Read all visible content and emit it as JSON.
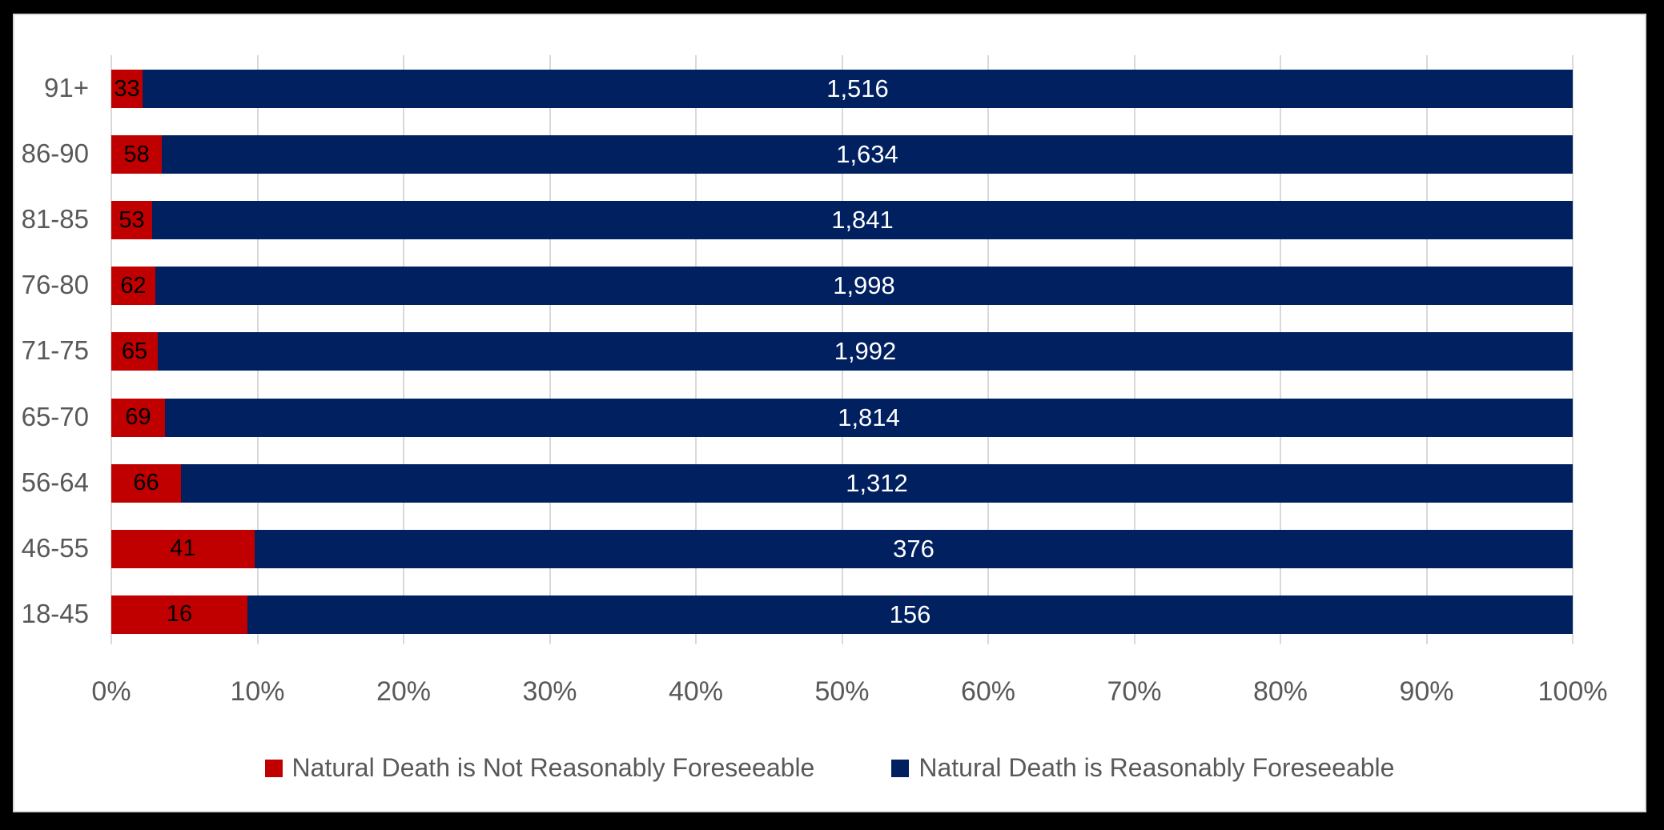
{
  "window": {
    "background_color": "#000000",
    "panel_background": "#ffffff",
    "panel_border_color": "#d9d9d9"
  },
  "chart_data": {
    "type": "bar",
    "orientation": "horizontal",
    "mode": "100-percent-stacked",
    "title": "",
    "xlabel": "",
    "ylabel": "",
    "xlim": [
      0,
      100
    ],
    "x_tick_labels": [
      "0%",
      "10%",
      "20%",
      "30%",
      "40%",
      "50%",
      "60%",
      "70%",
      "80%",
      "90%",
      "100%"
    ],
    "grid": true,
    "gridline_color": "#d9d9d9",
    "axis_text_color": "#595959",
    "legend_position": "bottom",
    "categories": [
      "91+",
      "86-90",
      "81-85",
      "76-80",
      "71-75",
      "65-70",
      "56-64",
      "46-55",
      "18-45"
    ],
    "series": [
      {
        "name": "Natural Death is Not Reasonably Foreseeable",
        "color": "#C00000",
        "label_color": "#000000",
        "values": [
          33,
          58,
          53,
          62,
          65,
          69,
          66,
          41,
          16
        ],
        "labels": [
          "33",
          "58",
          "53",
          "62",
          "65",
          "69",
          "66",
          "41",
          "16"
        ]
      },
      {
        "name": "Natural Death is Reasonably Foreseeable",
        "color": "#002060",
        "label_color": "#FFFFFF",
        "values": [
          1516,
          1634,
          1841,
          1998,
          1992,
          1814,
          1312,
          376,
          156
        ],
        "labels": [
          "1,516",
          "1,634",
          "1,841",
          "1,998",
          "1,992",
          "1,814",
          "1,312",
          "376",
          "156"
        ]
      }
    ]
  },
  "legend": {
    "items": [
      {
        "label": "Natural Death is Not Reasonably Foreseeable",
        "color": "#C00000"
      },
      {
        "label": "Natural Death is Reasonably Foreseeable",
        "color": "#002060"
      }
    ]
  }
}
